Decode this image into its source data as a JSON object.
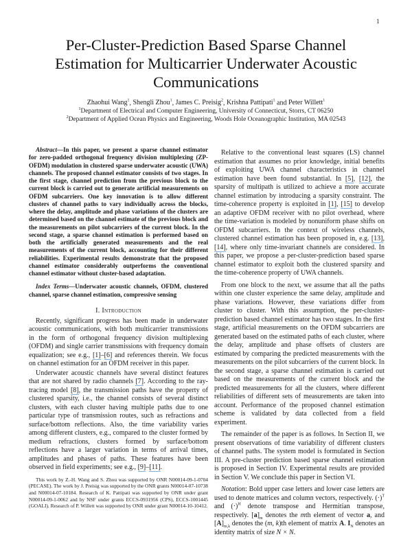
{
  "page_number": "1",
  "title": [
    "Per-Cluster-Prediction Based Sparse Channel",
    "Estimation for Multicarrier Underwater Acoustic",
    "Communications"
  ],
  "authors": [
    {
      "name": "Zhaohui Wang",
      "aff": "1"
    },
    {
      "name": "Shengli Zhou",
      "aff": "1"
    },
    {
      "name": "James C. Preisig",
      "aff": "2"
    },
    {
      "name": "Krishna Pattipati",
      "aff": "1"
    },
    {
      "name": "Peter Willett",
      "aff": "1"
    }
  ],
  "affiliations": [
    {
      "mark": "1",
      "text": "Department of Electrical and Computer Engineering, University of Connecticut, Storrs, CT 06250"
    },
    {
      "mark": "2",
      "text": "Department of Applied Ocean Physics and Engineering, Woods Hole Oceanographic Institution, MA 02543"
    }
  ],
  "abstract": {
    "lead": "Abstract",
    "text": "—In this paper, we present a sparse channel estimator for zero-padded orthogonal frequency division multiplexing (ZP-OFDM) modulation in clustered sparse underwater acoustic (UWA) channels. The proposed channel estimator consists of two stages. In the first stage, channel prediction from the previous block to the current block is carried out to generate artificial measurements on OFDM subcarriers. One key innovation is to allow different clusters of channel paths to vary individually across the blocks, where the delay, amplitude and phase variations of the clusters are determined based on the channel estimate of the previous block and the measurements on pilot subcarriers of the current block. In the second stage, a sparse channel estimation is performed based on both the artificially generated measurements and the real measurements of the current block, accounting for their different reliabilities. Experimental results demonstrate that the proposed channel estimator considerably outperforms the conventional channel estimator without cluster-based adaptation."
  },
  "index_terms": {
    "lead": "Index Terms",
    "text": "—Underwater acoustic channels, OFDM, clustered channel, sparse channel estimation, compressive sensing"
  },
  "section_heading": {
    "num": "I. ",
    "title": "Introduction"
  },
  "left_paragraphs": [
    [
      {
        "t": "Recently, significant progress has been made in underwater acoustic communications, with both multicarrier transmissions in the form of orthogonal frequency division multiplexing (OFDM) and single carrier transmissions with frequency domain equalization; see e.g., "
      },
      {
        "c": "[1]"
      },
      {
        "t": "–"
      },
      {
        "c": "[6]"
      },
      {
        "t": " and references therein. We focus on channel estimation for an OFDM receiver in this paper."
      }
    ],
    [
      {
        "t": "Underwater acoustic channels have several distinct features that are not shared by radio channels "
      },
      {
        "c": "[7]"
      },
      {
        "t": ". According to the ray-tracing model "
      },
      {
        "c": "[8]"
      },
      {
        "t": ", the transmission paths have the property of clustered sparsity, i.e., the channel consists of several distinct clusters, with each cluster having multiple paths due to one particular type of transmission routes, such as refractions and surface/bottom reflections. Also, the time variability varies among different clusters, e.g., compared to the cluster formed by medium refractions, clusters formed by surface/bottom reflections have a larger variation in terms of arrival times, amplitudes and phases of paths. These features have been observed in field experiments; see e.g., "
      },
      {
        "c": "[9]"
      },
      {
        "t": "–"
      },
      {
        "c": "[11]"
      },
      {
        "t": "."
      }
    ]
  ],
  "footnote": "This work by Z.-H. Wang and S. Zhou was supported by ONR N00014-09-1-0704 (PECASE). The work by J. Preisig was supported by the ONR grants N00014-07-10738 and N00014-07-10184. Research of K. Pattipati was supported by ONR under grant N00014-09-1-0062 and by NSF under grants ECCS-0931956 (CPS), ECCS-1001445 (GOALI). Research of P. Willett was supported by ONR under grant N00014-10-10412.",
  "right_paragraphs": [
    [
      {
        "t": "Relative to the conventional least squares (LS) channel estimation that assumes no prior knowledge, initial benefits of exploiting UWA channel characteristics in channel estimation have been found substantial. In "
      },
      {
        "c": "[5]"
      },
      {
        "t": ", "
      },
      {
        "c": "[12]"
      },
      {
        "t": ", the sparsity of multipath is utilized to achieve a more accurate channel estimation by introducing a sparsity constraint. The time-coherence property is exploited in "
      },
      {
        "c": "[1]"
      },
      {
        "t": ", "
      },
      {
        "c": "[15]"
      },
      {
        "t": " to develop an adaptive OFDM receiver with no pilot overhead, where the time-variation is modeled by nonuniform phase shifts on OFDM subcarriers. In the context of wireless channels, clustered channel estimation has been proposed in, e.g. "
      },
      {
        "c": "[13]"
      },
      {
        "t": ", "
      },
      {
        "c": "[14]"
      },
      {
        "t": ", where only time-invariant channels are considered. In this paper, we propose a per-cluster-prediction based sparse channel estimator to exploit both the clustered sparsity and the time-coherence property of UWA channels."
      }
    ],
    [
      {
        "t": "From one block to the next, we assume that all the paths within one cluster experience the same delay, amplitude and phase variations. However, these variations differ from cluster to cluster. With this assumption, the per-cluster-prediction based channel estimator has two stages. In the first stage, artificial measurements on the OFDM subcarriers are generated based on the estimated paths of each cluster, where the delay, amplitude and phase offsets of clusters are estimated by comparing the predicted measurements with the measurements on the pilot subcarriers of the current block. In the second stage, a sparse channel estimation is carried out based on the measurements of the current block and the predicted measurements for all the clusters, where different reliabilities of different sets of measurements are taken into account. Performance of the proposed channel estimation scheme is validated by data collected from a field experiment."
      }
    ],
    [
      {
        "t": "The remainder of the paper is as follows. In Section II, we present observations of time variability of different clusters of channel paths. The system model is formulated in Section III. A pre-cluster prediction based sparse channel estimation is proposed in Section IV. Experimental results are provided in Section V. We conclude this paper in Section VI."
      }
    ],
    [
      {
        "i": "Notation"
      },
      {
        "t": ": Bold upper case letters and lower case letters are used to denote matrices and column vectors, respectively. (·)"
      },
      {
        "sup": "T"
      },
      {
        "t": " and (·)"
      },
      {
        "sup": "H"
      },
      {
        "t": " denote transpose and Hermitian transpose, respectively. ["
      },
      {
        "b": "a"
      },
      {
        "t": "]"
      },
      {
        "sub": "m"
      },
      {
        "t": " denotes the "
      },
      {
        "i": "m"
      },
      {
        "t": "th element of vector "
      },
      {
        "b": "a"
      },
      {
        "t": ", and ["
      },
      {
        "b": "A"
      },
      {
        "t": "]"
      },
      {
        "sub": "m,k"
      },
      {
        "t": " denotes the ("
      },
      {
        "i": "m, k"
      },
      {
        "t": ")th element of matrix "
      },
      {
        "b": "A"
      },
      {
        "t": ". "
      },
      {
        "b": "I"
      },
      {
        "sub": "N"
      },
      {
        "t": " denotes an identity matrix of size "
      },
      {
        "i": "N × N"
      },
      {
        "t": "."
      }
    ]
  ]
}
